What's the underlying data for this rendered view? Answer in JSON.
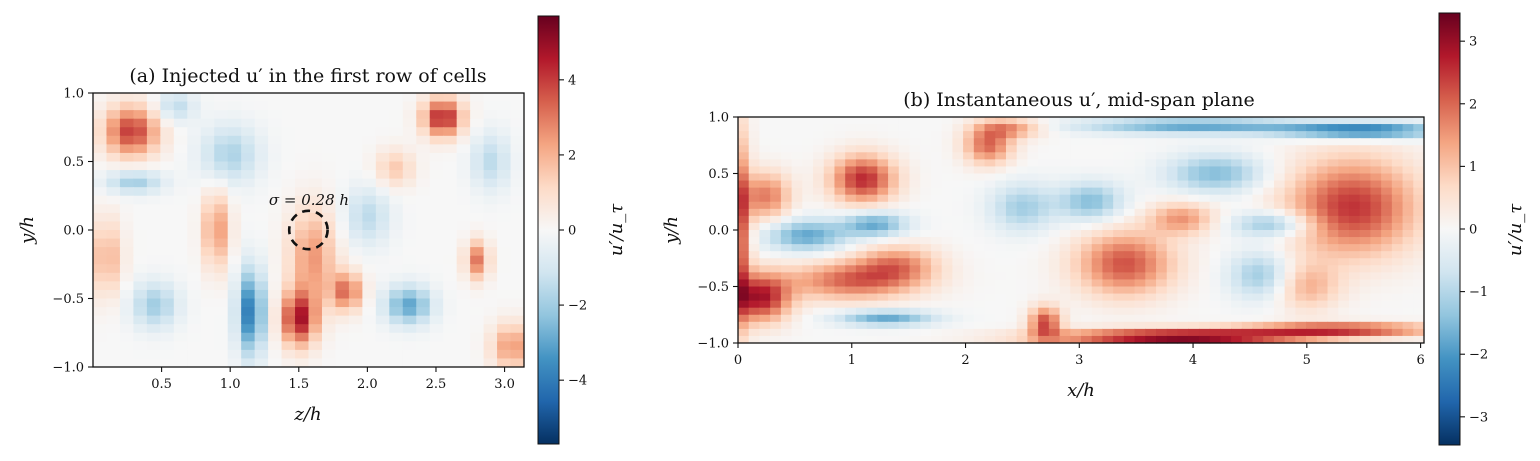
{
  "chart_data": [
    {
      "type": "heatmap",
      "title": "(a) Injected u′ in the first row of cells",
      "xlabel": "z/h",
      "ylabel": "y/h",
      "xlim": [
        0,
        3.1416
      ],
      "ylim": [
        -1.0,
        1.0
      ],
      "xticks": [
        0.5,
        1.0,
        1.5,
        2.0,
        2.5,
        3.0
      ],
      "xtick_labels": [
        "0.5",
        "1.0",
        "1.5",
        "2.0",
        "2.5",
        "3.0"
      ],
      "yticks": [
        -1.0,
        -0.5,
        0.0,
        0.5,
        1.0
      ],
      "ytick_labels": [
        "−1.0",
        "−0.5",
        "0.0",
        "0.5",
        "1.0"
      ],
      "colormap": "RdBu_r",
      "colorbar": {
        "label": "u′/u_τ",
        "range": [
          -5.7,
          5.7
        ],
        "ticks": [
          -4,
          -2,
          0,
          2,
          4
        ],
        "tick_labels": [
          "−4",
          "−2",
          "0",
          "2",
          "4"
        ]
      },
      "annotation": {
        "text": "σ = 0.28 h",
        "circle_center": [
          1.57,
          0.0
        ],
        "circle_radius": 0.14
      },
      "blobs": [
        {
          "x": 0.28,
          "y": 0.72,
          "amp": 4.0,
          "sx": 0.14,
          "sy": 0.13
        },
        {
          "x": 2.55,
          "y": 0.82,
          "amp": 4.5,
          "sx": 0.1,
          "sy": 0.1
        },
        {
          "x": 2.8,
          "y": -0.22,
          "amp": 3.0,
          "sx": 0.06,
          "sy": 0.1
        },
        {
          "x": 1.5,
          "y": -0.65,
          "amp": 4.5,
          "sx": 0.09,
          "sy": 0.14
        },
        {
          "x": 1.6,
          "y": -0.2,
          "amp": 2.5,
          "sx": 0.12,
          "sy": 0.25
        },
        {
          "x": 1.85,
          "y": -0.45,
          "amp": 3.2,
          "sx": 0.08,
          "sy": 0.1
        },
        {
          "x": 0.9,
          "y": 0.0,
          "amp": 2.5,
          "sx": 0.07,
          "sy": 0.2
        },
        {
          "x": 1.15,
          "y": -0.6,
          "amp": -4.0,
          "sx": 0.07,
          "sy": 0.22
        },
        {
          "x": 2.3,
          "y": -0.55,
          "amp": -3.0,
          "sx": 0.12,
          "sy": 0.1
        },
        {
          "x": 0.45,
          "y": -0.55,
          "amp": -2.0,
          "sx": 0.12,
          "sy": 0.12
        },
        {
          "x": 0.3,
          "y": 0.35,
          "amp": -2.0,
          "sx": 0.15,
          "sy": 0.06
        },
        {
          "x": 1.0,
          "y": 0.55,
          "amp": -1.8,
          "sx": 0.15,
          "sy": 0.15
        },
        {
          "x": 2.2,
          "y": 0.45,
          "amp": 1.5,
          "sx": 0.1,
          "sy": 0.1
        },
        {
          "x": 3.05,
          "y": -0.85,
          "amp": 2.5,
          "sx": 0.1,
          "sy": 0.12
        },
        {
          "x": 0.1,
          "y": -0.2,
          "amp": 2.0,
          "sx": 0.08,
          "sy": 0.2
        },
        {
          "x": 2.0,
          "y": 0.1,
          "amp": -1.5,
          "sx": 0.12,
          "sy": 0.15
        },
        {
          "x": 0.6,
          "y": 0.9,
          "amp": -1.5,
          "sx": 0.1,
          "sy": 0.08
        },
        {
          "x": 2.9,
          "y": 0.5,
          "amp": -1.5,
          "sx": 0.1,
          "sy": 0.15
        }
      ]
    },
    {
      "type": "heatmap",
      "title": "(b) Instantaneous u′, mid-span plane",
      "xlabel": "x/h",
      "ylabel": "y/h",
      "xlim": [
        0,
        6.03
      ],
      "ylim": [
        -1.0,
        1.0
      ],
      "xticks": [
        0,
        1,
        2,
        3,
        4,
        5,
        6
      ],
      "xtick_labels": [
        "0",
        "1",
        "2",
        "3",
        "4",
        "5",
        "6"
      ],
      "yticks": [
        -1.0,
        -0.5,
        0.0,
        0.5,
        1.0
      ],
      "ytick_labels": [
        "−1.0",
        "−0.5",
        "0.0",
        "0.5",
        "1.0"
      ],
      "colormap": "RdBu_r",
      "colorbar": {
        "label": "u′/u_τ",
        "range": [
          -3.45,
          3.45
        ],
        "ticks": [
          -3,
          -2,
          -1,
          0,
          1,
          2,
          3
        ],
        "tick_labels": [
          "−3",
          "−2",
          "−1",
          "0",
          "1",
          "2",
          "3"
        ]
      },
      "blobs": [
        {
          "x": 0.2,
          "y": -0.6,
          "amp": 2.8,
          "sx": 0.18,
          "sy": 0.15
        },
        {
          "x": 0.05,
          "y": 0.0,
          "amp": 2.0,
          "sx": 0.05,
          "sy": 0.6
        },
        {
          "x": 0.25,
          "y": 0.3,
          "amp": 1.8,
          "sx": 0.15,
          "sy": 0.15
        },
        {
          "x": 1.1,
          "y": 0.45,
          "amp": 2.6,
          "sx": 0.2,
          "sy": 0.15
        },
        {
          "x": 1.0,
          "y": -0.45,
          "amp": 2.0,
          "sx": 0.4,
          "sy": 0.12
        },
        {
          "x": 1.4,
          "y": -0.3,
          "amp": 1.5,
          "sx": 0.25,
          "sy": 0.12
        },
        {
          "x": 0.6,
          "y": -0.05,
          "amp": -1.8,
          "sx": 0.25,
          "sy": 0.1
        },
        {
          "x": 1.2,
          "y": 0.05,
          "amp": -1.8,
          "sx": 0.2,
          "sy": 0.08
        },
        {
          "x": 2.2,
          "y": 0.75,
          "amp": 2.0,
          "sx": 0.15,
          "sy": 0.12
        },
        {
          "x": 2.4,
          "y": 0.9,
          "amp": 1.5,
          "sx": 0.2,
          "sy": 0.06
        },
        {
          "x": 2.7,
          "y": -0.82,
          "amp": 2.3,
          "sx": 0.1,
          "sy": 0.1
        },
        {
          "x": 3.4,
          "y": -0.3,
          "amp": 2.2,
          "sx": 0.3,
          "sy": 0.2
        },
        {
          "x": 3.9,
          "y": -0.95,
          "amp": 3.4,
          "sx": 0.8,
          "sy": 0.05
        },
        {
          "x": 5.3,
          "y": -0.88,
          "amp": 2.5,
          "sx": 0.6,
          "sy": 0.04
        },
        {
          "x": 5.4,
          "y": 0.2,
          "amp": 2.5,
          "sx": 0.4,
          "sy": 0.3
        },
        {
          "x": 3.1,
          "y": 0.25,
          "amp": -1.5,
          "sx": 0.2,
          "sy": 0.12
        },
        {
          "x": 4.2,
          "y": 0.5,
          "amp": -1.5,
          "sx": 0.3,
          "sy": 0.12
        },
        {
          "x": 4.0,
          "y": 0.92,
          "amp": -1.8,
          "sx": 0.7,
          "sy": 0.05
        },
        {
          "x": 5.5,
          "y": 0.88,
          "amp": -2.5,
          "sx": 0.5,
          "sy": 0.05
        },
        {
          "x": 4.6,
          "y": -0.4,
          "amp": -1.3,
          "sx": 0.2,
          "sy": 0.15
        },
        {
          "x": 1.3,
          "y": -0.78,
          "amp": -1.8,
          "sx": 0.3,
          "sy": 0.05
        },
        {
          "x": 5.0,
          "y": -0.5,
          "amp": 1.2,
          "sx": 0.2,
          "sy": 0.15
        },
        {
          "x": 3.9,
          "y": 0.1,
          "amp": 1.5,
          "sx": 0.2,
          "sy": 0.1
        },
        {
          "x": 2.5,
          "y": 0.2,
          "amp": -1.2,
          "sx": 0.2,
          "sy": 0.15
        },
        {
          "x": 4.7,
          "y": 0.05,
          "amp": -1.5,
          "sx": 0.25,
          "sy": 0.08
        }
      ]
    }
  ]
}
